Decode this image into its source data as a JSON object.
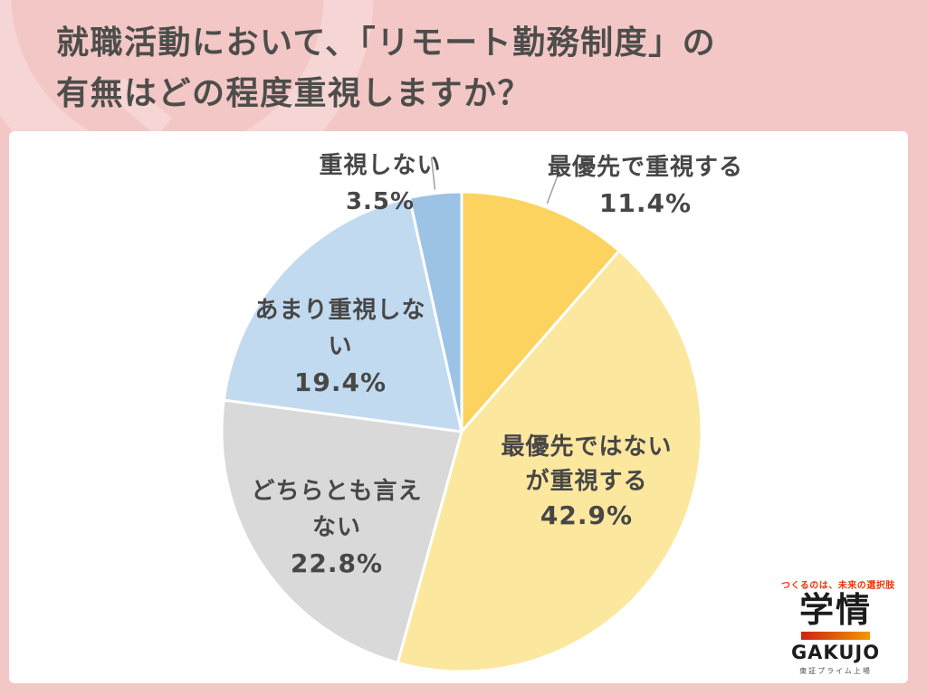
{
  "header": {
    "title_line1": "就職活動において、「リモート勤務制度」の",
    "title_line2": "有無はどの程度重視しますか？"
  },
  "chart_data": {
    "type": "pie",
    "title": "就職活動において、「リモート勤務制度」の有無はどの程度重視しますか？",
    "unit": "%",
    "rotation": "clockwise-from-12-oclock",
    "legend": "none",
    "slices": [
      {
        "label": "最優先で重視する",
        "value": 11.4,
        "color": "#FBD35E",
        "label_position": "outside-right",
        "leader_line": true,
        "display_lines": [
          "最優先で重視する",
          "11.4%"
        ]
      },
      {
        "label": "最優先ではないが重視する",
        "value": 42.9,
        "color": "#FCE79E",
        "label_position": "inside",
        "leader_line": false,
        "display_lines": [
          "最優先ではない",
          "が重視する",
          "42.9%"
        ]
      },
      {
        "label": "どちらとも言えない",
        "value": 22.8,
        "color": "#D9D9D9",
        "label_position": "inside",
        "leader_line": false,
        "display_lines": [
          "どちらとも言えない",
          "22.8%"
        ]
      },
      {
        "label": "あまり重視しない",
        "value": 19.4,
        "color": "#C2DAEF",
        "label_position": "inside",
        "leader_line": false,
        "display_lines": [
          "あまり重視しない",
          "19.4%"
        ]
      },
      {
        "label": "重視しない",
        "value": 3.5,
        "color": "#9CC3E6",
        "label_position": "outside-left",
        "leader_line": true,
        "display_lines": [
          "重視しない 3.5%"
        ]
      }
    ]
  },
  "logo": {
    "tagline": "つくるのは、未来の選択肢",
    "name_jp": "学情",
    "name_en": "GAKUJO",
    "listing": "東証プライム上場"
  },
  "colors": {
    "background_pink": "#F2C7C5",
    "watermark_pink": "#F6D6D4",
    "panel_white": "#FFFFFF",
    "title_text": "#4D4D4B",
    "label_text": "#474747",
    "leader_line": "#A0A0A0",
    "logo_red": "#E8380D",
    "logo_orange": "#F39800"
  }
}
